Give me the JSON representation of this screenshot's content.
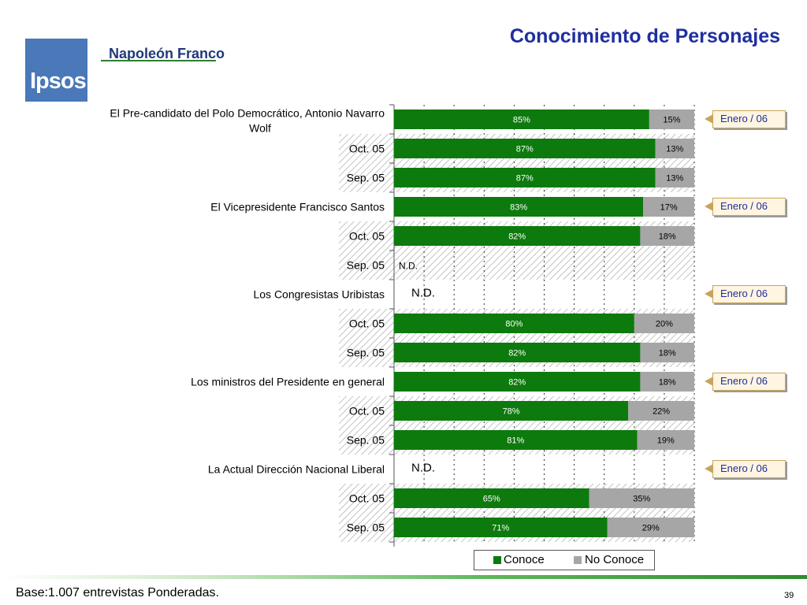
{
  "header": {
    "title": "Conocimiento de Personajes",
    "brand": "Napoleón Franco",
    "logo_text": "Ipsos"
  },
  "footer": {
    "note": "Base:1.007 entrevistas Ponderadas.",
    "page": "39"
  },
  "colors": {
    "conoce": "#0d7a0d",
    "no_conoce": "#a6a6a6",
    "title": "#1f2e9e",
    "callout_bg": "#fff5e1"
  },
  "callouts": {
    "label": "Enero / 06"
  },
  "chart_data": {
    "type": "bar",
    "orientation": "horizontal",
    "stacked": true,
    "xlim": [
      0,
      100
    ],
    "grid": true,
    "legend_position": "bottom",
    "series": [
      {
        "name": "Conoce",
        "color": "#0d7a0d"
      },
      {
        "name": "No Conoce",
        "color": "#a6a6a6"
      }
    ],
    "rows": [
      {
        "label": "El Pre-candidato del Polo Democrático, Antonio Navarro Wolf",
        "period": "Enero / 06",
        "conoce": 85,
        "no_conoce": 15,
        "conoce_label": "85%",
        "no_conoce_label": "15%"
      },
      {
        "label": "Oct. 05",
        "hatched": true,
        "conoce": 87,
        "no_conoce": 13,
        "conoce_label": "87%",
        "no_conoce_label": "13%"
      },
      {
        "label": "Sep. 05",
        "hatched": true,
        "conoce": 87,
        "no_conoce": 13,
        "conoce_label": "87%",
        "no_conoce_label": "13%"
      },
      {
        "label": "El Vicepresidente Francisco Santos",
        "period": "Enero / 06",
        "conoce": 83,
        "no_conoce": 17,
        "conoce_label": "83%",
        "no_conoce_label": "17%"
      },
      {
        "label": "Oct. 05",
        "hatched": true,
        "conoce": 82,
        "no_conoce": 18,
        "conoce_label": "82%",
        "no_conoce_label": "18%"
      },
      {
        "label": "Sep. 05",
        "hatched": true,
        "nd": "N.D."
      },
      {
        "label": "Los Congresistas Uribistas",
        "period": "Enero / 06",
        "nd": "N.D."
      },
      {
        "label": "Oct. 05",
        "hatched": true,
        "conoce": 80,
        "no_conoce": 20,
        "conoce_label": "80%",
        "no_conoce_label": "20%"
      },
      {
        "label": "Sep. 05",
        "hatched": true,
        "conoce": 82,
        "no_conoce": 18,
        "conoce_label": "82%",
        "no_conoce_label": "18%"
      },
      {
        "label": "Los ministros del Presidente en general",
        "period": "Enero / 06",
        "conoce": 82,
        "no_conoce": 18,
        "conoce_label": "82%",
        "no_conoce_label": "18%"
      },
      {
        "label": "Oct. 05",
        "hatched": true,
        "conoce": 78,
        "no_conoce": 22,
        "conoce_label": "78%",
        "no_conoce_label": "22%"
      },
      {
        "label": "Sep. 05",
        "hatched": true,
        "conoce": 81,
        "no_conoce": 19,
        "conoce_label": "81%",
        "no_conoce_label": "19%"
      },
      {
        "label": "La Actual Dirección Nacional Liberal",
        "period": "Enero / 06",
        "nd": "N.D."
      },
      {
        "label": "Oct. 05",
        "hatched": true,
        "conoce": 65,
        "no_conoce": 35,
        "conoce_label": "65%",
        "no_conoce_label": "35%"
      },
      {
        "label": "Sep. 05",
        "hatched": true,
        "conoce": 71,
        "no_conoce": 29,
        "conoce_label": "71%",
        "no_conoce_label": "29%"
      }
    ]
  }
}
